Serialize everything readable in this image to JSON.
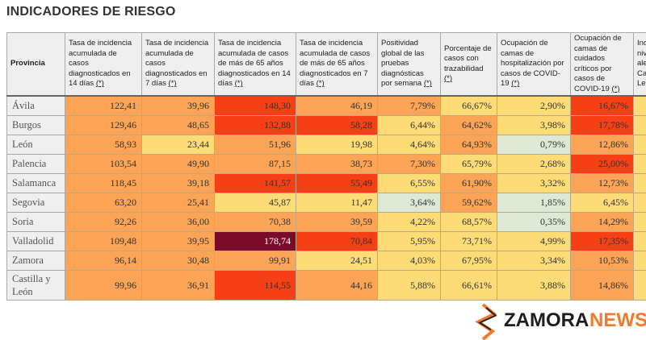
{
  "title": "INDICADORES DE RIESGO",
  "headers": [
    {
      "text": "Provincia",
      "ref": ""
    },
    {
      "text": "Tasa de incidencia acumulada de casos diagnosticados en 14 días ",
      "ref": "(*)"
    },
    {
      "text": "Tasa de incidencia acumulada de casos diagnosticados en 7 días ",
      "ref": "(*)"
    },
    {
      "text": "Tasa de incidencia acumulada de casos de más de 65 años diagnosticados en 14 días ",
      "ref": "(*)"
    },
    {
      "text": "Tasa de incidencia acumulada de casos de más de 65 años diagnosticados en 7 días ",
      "ref": "(*)"
    },
    {
      "text": "Positividad global de las pruebas diagnósticas por semana ",
      "ref": "(*)"
    },
    {
      "text": "Porcentaje de casos con trazabilidad ",
      "ref": "(*)"
    },
    {
      "text": "Ocupación de camas de hospitalización por casos de COVID-19 ",
      "ref": "(*)"
    },
    {
      "text": "Ocupación de camas de cuidados críticos por casos de COVID-19 ",
      "ref": "(*)"
    },
    {
      "text": "Ind niv ale Cas Leó",
      "ref": ""
    }
  ],
  "rows": [
    {
      "name": "Ávila",
      "values": [
        "122,41",
        "39,96",
        "148,30",
        "46,19",
        "7,79%",
        "66,67%",
        "2,90%",
        "16,67%",
        ""
      ],
      "levels": [
        "O",
        "O",
        "R",
        "O",
        "O",
        "Y",
        "Y",
        "R",
        "Y"
      ]
    },
    {
      "name": "Burgos",
      "values": [
        "129,46",
        "48,65",
        "132,88",
        "58,28",
        "6,44%",
        "64,62%",
        "3,98%",
        "17,78%",
        ""
      ],
      "levels": [
        "O",
        "O",
        "R",
        "R",
        "Y",
        "O",
        "Y",
        "R",
        "Y"
      ]
    },
    {
      "name": "León",
      "values": [
        "58,93",
        "23,44",
        "51,96",
        "19,98",
        "4,64%",
        "64,93%",
        "0,79%",
        "12,86%",
        ""
      ],
      "levels": [
        "O",
        "Y",
        "O",
        "Y",
        "Y",
        "O",
        "G",
        "O",
        "Y"
      ]
    },
    {
      "name": "Palencia",
      "values": [
        "103,54",
        "49,90",
        "87,15",
        "38,73",
        "7,30%",
        "65,79%",
        "2,68%",
        "25,00%",
        ""
      ],
      "levels": [
        "O",
        "O",
        "O",
        "O",
        "O",
        "Y",
        "Y",
        "R",
        "Y"
      ]
    },
    {
      "name": "Salamanca",
      "values": [
        "118,45",
        "39,18",
        "141,57",
        "55,49",
        "6,55%",
        "61,90%",
        "3,32%",
        "12,73%",
        ""
      ],
      "levels": [
        "O",
        "O",
        "R",
        "R",
        "Y",
        "O",
        "Y",
        "O",
        "Y"
      ]
    },
    {
      "name": "Segovia",
      "values": [
        "63,20",
        "25,41",
        "45,87",
        "11,47",
        "3,64%",
        "59,62%",
        "1,85%",
        "6,45%",
        ""
      ],
      "levels": [
        "O",
        "O",
        "Y",
        "Y",
        "G",
        "O",
        "G",
        "Y",
        "Y"
      ]
    },
    {
      "name": "Soria",
      "values": [
        "92,26",
        "36,00",
        "70,38",
        "39,59",
        "4,22%",
        "68,57%",
        "0,35%",
        "14,29%",
        ""
      ],
      "levels": [
        "O",
        "O",
        "O",
        "O",
        "Y",
        "Y",
        "G",
        "O",
        "Y"
      ]
    },
    {
      "name": "Valladolid",
      "values": [
        "109,48",
        "39,95",
        "178,74",
        "70,84",
        "5,95%",
        "73,71%",
        "4,99%",
        "17,35%",
        ""
      ],
      "levels": [
        "O",
        "O",
        "D",
        "R",
        "Y",
        "Y",
        "Y",
        "R",
        "Y"
      ]
    },
    {
      "name": "Zamora",
      "values": [
        "96,14",
        "30,48",
        "99,91",
        "24,51",
        "4,03%",
        "67,95%",
        "3,34%",
        "10,53%",
        ""
      ],
      "levels": [
        "O",
        "O",
        "O",
        "Y",
        "Y",
        "Y",
        "Y",
        "O",
        "Y"
      ]
    },
    {
      "name": "Castilla y León",
      "values": [
        "99,96",
        "36,91",
        "114,55",
        "44,16",
        "5,88%",
        "66,61%",
        "3,88%",
        "14,86%",
        ""
      ],
      "levels": [
        "O",
        "O",
        "R",
        "O",
        "Y",
        "Y",
        "Y",
        "O",
        "Y"
      ]
    }
  ],
  "level_colors": {
    "O": "#fba455",
    "Y": "#fddc78",
    "R": "#f63f14",
    "D": "#7b0a2b",
    "G": "#dee9d5"
  },
  "watermark": {
    "brand": "ZAMORA",
    "brand_accent": "NEWS"
  }
}
